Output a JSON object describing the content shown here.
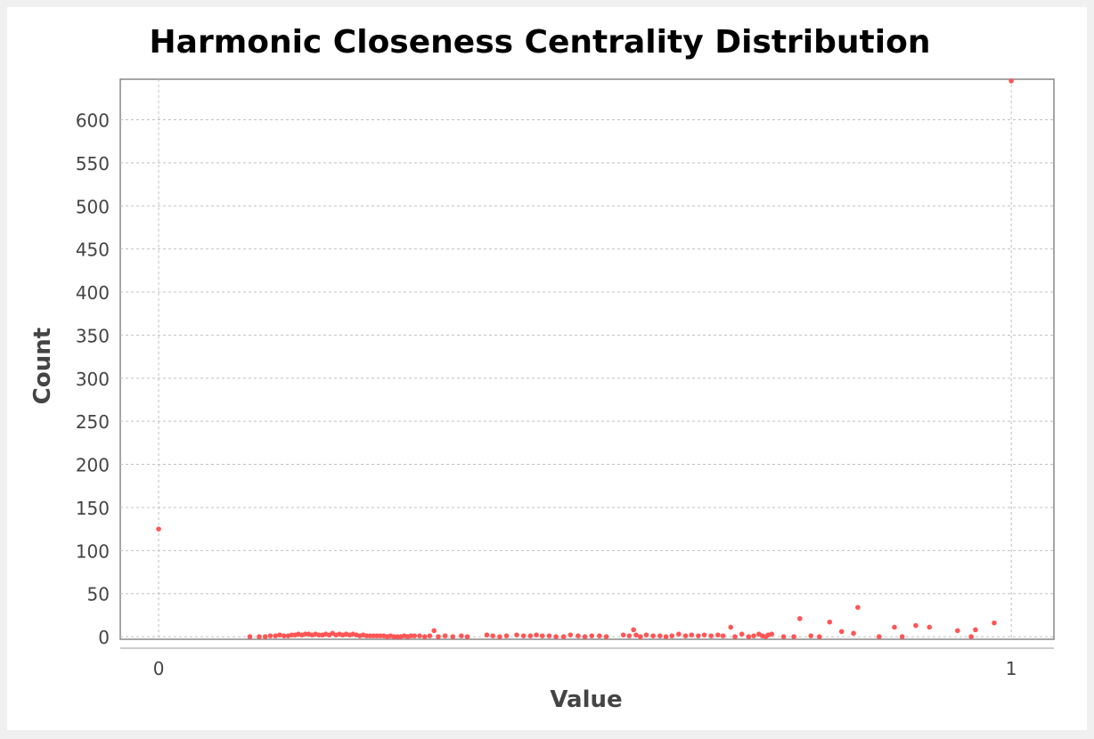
{
  "chart_data": {
    "type": "scatter",
    "title": "Harmonic Closeness Centrality Distribution",
    "xlabel": "Value",
    "ylabel": "Count",
    "xlim": [
      -0.045,
      1.05
    ],
    "ylim": [
      -3,
      647
    ],
    "x_ticks": [
      0,
      1
    ],
    "x_tick_labels": [
      "0",
      "1"
    ],
    "y_ticks": [
      0,
      50,
      100,
      150,
      200,
      250,
      300,
      350,
      400,
      450,
      500,
      550,
      600
    ],
    "y_tick_labels": [
      "0",
      "50",
      "100",
      "150",
      "200",
      "250",
      "300",
      "350",
      "400",
      "450",
      "500",
      "550",
      "600"
    ],
    "grid": true,
    "legend": "none",
    "point_color": "#ff5555",
    "series": [
      {
        "x": [
          0.0,
          1.0,
          0.752,
          0.82,
          0.671,
          0.98,
          0.958,
          0.904,
          0.888,
          0.863,
          0.787,
          0.801,
          0.719,
          0.684,
          0.815,
          0.937,
          0.323,
          0.557,
          0.715,
          0.704,
          0.107,
          0.118,
          0.125,
          0.131,
          0.137,
          0.142,
          0.147,
          0.152,
          0.156,
          0.16,
          0.164,
          0.168,
          0.172,
          0.176,
          0.18,
          0.184,
          0.188,
          0.192,
          0.196,
          0.2,
          0.204,
          0.208,
          0.212,
          0.216,
          0.22,
          0.224,
          0.228,
          0.232,
          0.236,
          0.24,
          0.244,
          0.248,
          0.252,
          0.256,
          0.26,
          0.264,
          0.268,
          0.272,
          0.276,
          0.28,
          0.284,
          0.288,
          0.292,
          0.296,
          0.3,
          0.306,
          0.312,
          0.318,
          0.328,
          0.336,
          0.345,
          0.355,
          0.362,
          0.385,
          0.392,
          0.4,
          0.408,
          0.42,
          0.428,
          0.436,
          0.443,
          0.45,
          0.458,
          0.466,
          0.475,
          0.483,
          0.492,
          0.5,
          0.508,
          0.517,
          0.525,
          0.545,
          0.552,
          0.56,
          0.565,
          0.572,
          0.58,
          0.588,
          0.595,
          0.602,
          0.61,
          0.618,
          0.625,
          0.633,
          0.64,
          0.648,
          0.656,
          0.662,
          0.676,
          0.692,
          0.698,
          0.708,
          0.712,
          0.733,
          0.745,
          0.765,
          0.775,
          0.845,
          0.872,
          0.953
        ],
        "y": [
          125,
          645,
          21,
          34,
          11,
          16,
          8,
          11,
          13,
          11,
          17,
          6,
          3,
          3,
          4,
          7,
          7,
          8,
          2,
          3,
          0,
          0,
          0,
          1,
          1,
          2,
          1,
          1,
          2,
          2,
          3,
          2,
          3,
          3,
          2,
          3,
          2,
          2,
          3,
          2,
          4,
          2,
          3,
          2,
          3,
          2,
          3,
          2,
          1,
          2,
          1,
          1,
          1,
          1,
          1,
          1,
          0,
          1,
          0,
          0,
          0,
          1,
          0,
          1,
          1,
          1,
          0,
          1,
          0,
          1,
          0,
          1,
          0,
          2,
          1,
          0,
          1,
          2,
          1,
          1,
          2,
          1,
          1,
          0,
          0,
          2,
          1,
          0,
          1,
          1,
          0,
          2,
          1,
          2,
          0,
          2,
          1,
          1,
          0,
          1,
          3,
          1,
          2,
          1,
          2,
          1,
          2,
          1,
          0,
          0,
          1,
          1,
          0,
          0,
          0,
          1,
          0,
          0,
          0,
          0
        ]
      }
    ]
  }
}
